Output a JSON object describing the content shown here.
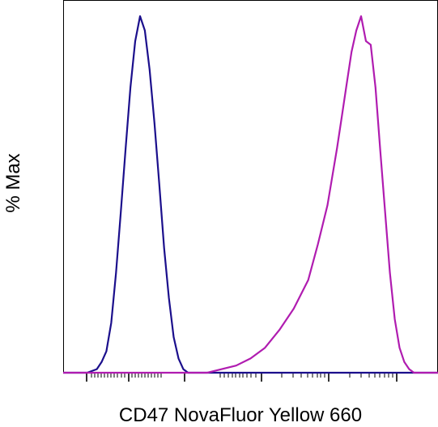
{
  "chart_data": {
    "type": "line",
    "subtype": "flow-cytometry-histogram",
    "title": "",
    "xlabel": "CD47 NovaFluor Yellow 660",
    "ylabel": "% Max",
    "x_scale": "biexponential",
    "x_tick_labels": [],
    "y_tick_labels": [],
    "ylim": [
      0,
      100
    ],
    "grid": false,
    "legend": "none",
    "series": [
      {
        "color": "#1b0f8c",
        "points": [
          [
            -0.18,
            0
          ],
          [
            -0.13,
            0
          ],
          [
            -0.11,
            1
          ],
          [
            -0.1,
            3
          ],
          [
            -0.09,
            6
          ],
          [
            -0.08,
            14
          ],
          [
            -0.07,
            28
          ],
          [
            -0.06,
            45
          ],
          [
            -0.05,
            63
          ],
          [
            -0.04,
            80
          ],
          [
            -0.03,
            93
          ],
          [
            -0.02,
            100
          ],
          [
            -0.01,
            96
          ],
          [
            0.0,
            85
          ],
          [
            0.01,
            70
          ],
          [
            0.02,
            53
          ],
          [
            0.03,
            35
          ],
          [
            0.04,
            21
          ],
          [
            0.05,
            10
          ],
          [
            0.06,
            4
          ],
          [
            0.07,
            1
          ],
          [
            0.08,
            0
          ],
          [
            0.6,
            0
          ]
        ]
      },
      {
        "color": "#b01cb0",
        "points": [
          [
            -0.18,
            0
          ],
          [
            0.12,
            0
          ],
          [
            0.15,
            1
          ],
          [
            0.18,
            2
          ],
          [
            0.21,
            4
          ],
          [
            0.24,
            7
          ],
          [
            0.27,
            12
          ],
          [
            0.3,
            18
          ],
          [
            0.33,
            26
          ],
          [
            0.35,
            36
          ],
          [
            0.37,
            47
          ],
          [
            0.38,
            55
          ],
          [
            0.39,
            63
          ],
          [
            0.4,
            72
          ],
          [
            0.41,
            81
          ],
          [
            0.42,
            90
          ],
          [
            0.43,
            96
          ],
          [
            0.44,
            100
          ],
          [
            0.45,
            93
          ],
          [
            0.46,
            92
          ],
          [
            0.47,
            80
          ],
          [
            0.48,
            62
          ],
          [
            0.49,
            45
          ],
          [
            0.5,
            28
          ],
          [
            0.51,
            15
          ],
          [
            0.52,
            7
          ],
          [
            0.53,
            3
          ],
          [
            0.54,
            1
          ],
          [
            0.55,
            0
          ],
          [
            0.6,
            0
          ]
        ]
      }
    ]
  }
}
